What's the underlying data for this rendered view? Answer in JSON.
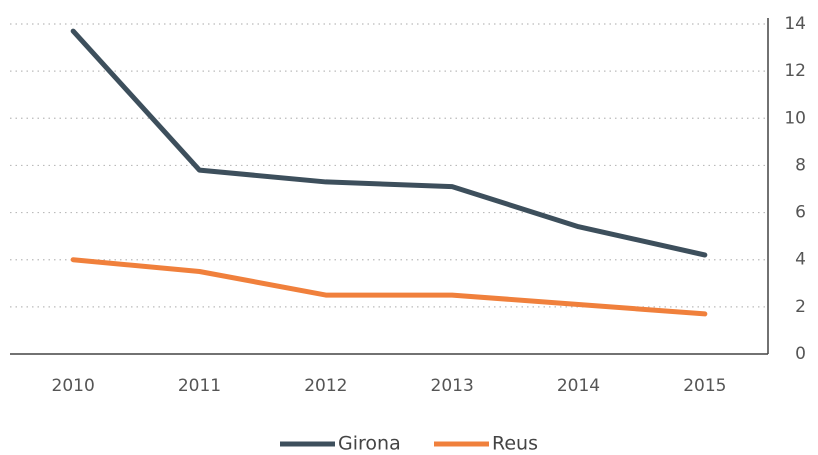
{
  "chart_data": {
    "type": "line",
    "categories": [
      "2010",
      "2011",
      "2012",
      "2013",
      "2014",
      "2015"
    ],
    "series": [
      {
        "name": "Girona",
        "color": "#3d4f5c",
        "values": [
          13.7,
          7.8,
          7.3,
          7.1,
          5.4,
          4.2
        ]
      },
      {
        "name": "Reus",
        "color": "#f0803c",
        "values": [
          4.0,
          3.5,
          2.5,
          2.5,
          2.1,
          1.7
        ]
      }
    ],
    "ylim": [
      0,
      14
    ],
    "yticks": [
      0,
      2,
      4,
      6,
      8,
      10,
      12,
      14
    ],
    "grid": true,
    "y_axis_side": "right",
    "legend": "bottom"
  }
}
